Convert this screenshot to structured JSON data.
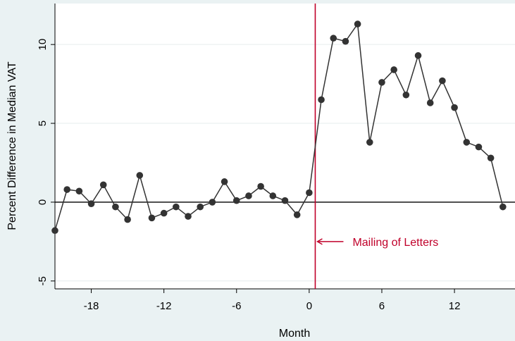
{
  "chart_data": {
    "type": "line",
    "xlabel": "Month",
    "ylabel": "Percent Difference in Median VAT",
    "xlim": [
      -21,
      17
    ],
    "ylim": [
      -5.5,
      12.6
    ],
    "xticks": [
      -18,
      -12,
      -6,
      0,
      6,
      12
    ],
    "yticks": [
      -5,
      0,
      5,
      10
    ],
    "grid": true,
    "reference_line": {
      "x": 0.5,
      "label": "Mailing of Letters",
      "color": "#c0002a"
    },
    "zero_line": 0,
    "series": [
      {
        "color": "#333333",
        "x": [
          -21,
          -20,
          -19,
          -18,
          -17,
          -16,
          -15,
          -14,
          -13,
          -12,
          -11,
          -10,
          -9,
          -8,
          -7,
          -6,
          -5,
          -4,
          -3,
          -2,
          -1,
          0,
          1,
          2,
          3,
          4,
          5,
          6,
          7,
          8,
          9,
          10,
          11,
          12,
          13,
          14,
          15,
          16
        ],
        "y": [
          -1.8,
          0.8,
          0.7,
          -0.1,
          1.1,
          -0.3,
          -1.1,
          1.7,
          -1.0,
          -0.7,
          -0.3,
          -0.9,
          -0.3,
          0.0,
          1.3,
          0.1,
          0.4,
          1.0,
          0.4,
          0.1,
          -0.8,
          0.6,
          6.5,
          10.4,
          10.2,
          11.3,
          3.8,
          7.6,
          8.4,
          6.8,
          9.3,
          6.3,
          7.7,
          6.0,
          3.8,
          3.5,
          2.8,
          -0.3
        ]
      }
    ]
  }
}
